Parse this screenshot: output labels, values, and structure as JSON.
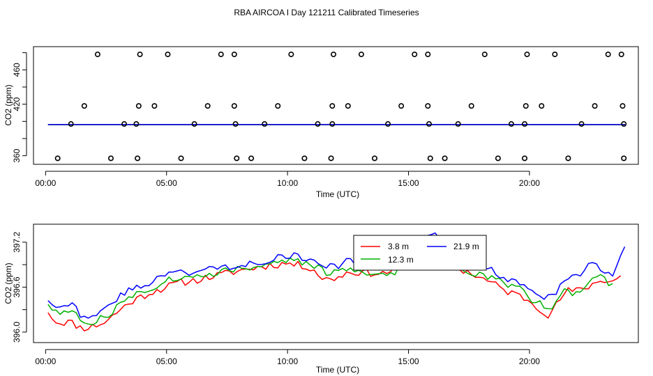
{
  "title": "RBA AIRCOA I  Day 121211  Calibrated Timeseries",
  "chart_data": [
    {
      "type": "scatter",
      "xlabel": "Time (UTC)",
      "ylabel": "CO2 (ppm)",
      "xlim": [
        -0.5,
        24.5
      ],
      "ylim": [
        350,
        487
      ],
      "xticks": [
        0,
        5,
        10,
        15,
        20
      ],
      "xtick_labels": [
        "00:00",
        "05:00",
        "10:00",
        "15:00",
        "20:00"
      ],
      "yticks": [
        360,
        420,
        460
      ],
      "ytick_labels": [
        "360",
        "420",
        "460"
      ],
      "yminor_ticks": [
        380,
        400,
        440,
        480
      ],
      "series_colors": [
        "#ff0000",
        "#00b000",
        "#0000ff"
      ],
      "points": [
        [
          0.5,
          357
        ],
        [
          1.05,
          397
        ],
        [
          1.6,
          418
        ],
        [
          2.15,
          478
        ],
        [
          2.7,
          357
        ],
        [
          3.25,
          397
        ],
        [
          3.8,
          357
        ],
        [
          3.75,
          397
        ],
        [
          3.85,
          418
        ],
        [
          3.9,
          478
        ],
        [
          4.5,
          418
        ],
        [
          5.05,
          478
        ],
        [
          5.6,
          357
        ],
        [
          6.15,
          397
        ],
        [
          6.7,
          418
        ],
        [
          7.25,
          478
        ],
        [
          7.8,
          478
        ],
        [
          7.8,
          418
        ],
        [
          7.85,
          397
        ],
        [
          7.9,
          357
        ],
        [
          8.5,
          357
        ],
        [
          9.05,
          397
        ],
        [
          9.6,
          418
        ],
        [
          10.15,
          478
        ],
        [
          10.7,
          357
        ],
        [
          11.25,
          397
        ],
        [
          11.8,
          357
        ],
        [
          11.85,
          397
        ],
        [
          11.85,
          418
        ],
        [
          11.9,
          478
        ],
        [
          12.5,
          418
        ],
        [
          13.05,
          478
        ],
        [
          13.6,
          357
        ],
        [
          14.15,
          397
        ],
        [
          14.7,
          418
        ],
        [
          15.25,
          478
        ],
        [
          15.8,
          478
        ],
        [
          15.8,
          418
        ],
        [
          15.85,
          397
        ],
        [
          15.9,
          357
        ],
        [
          16.5,
          357
        ],
        [
          17.05,
          397
        ],
        [
          17.6,
          418
        ],
        [
          18.15,
          478
        ],
        [
          18.7,
          357
        ],
        [
          19.25,
          397
        ],
        [
          19.8,
          357
        ],
        [
          19.8,
          397
        ],
        [
          19.85,
          418
        ],
        [
          19.9,
          478
        ],
        [
          20.5,
          418
        ],
        [
          21.05,
          478
        ],
        [
          21.6,
          357
        ],
        [
          22.15,
          397
        ],
        [
          22.7,
          418
        ],
        [
          23.25,
          478
        ],
        [
          23.8,
          478
        ],
        [
          23.85,
          418
        ],
        [
          23.9,
          397
        ],
        [
          23.9,
          357
        ]
      ],
      "series": [
        {
          "name": "3.8 m",
          "color": "#ff0000",
          "x": [
            0.1,
            23.95
          ],
          "y": [
            396.1,
            396.1
          ]
        },
        {
          "name": "12.3 m",
          "color": "#00b000",
          "x": [
            0.1,
            23.95
          ],
          "y": [
            396.2,
            396.2
          ]
        },
        {
          "name": "21.9 m",
          "color": "#0000ff",
          "x": [
            0.1,
            23.95
          ],
          "y": [
            396.3,
            396.3
          ]
        }
      ]
    },
    {
      "type": "line",
      "xlabel": "Time (UTC)",
      "ylabel": "CO2 (ppm)",
      "xlim": [
        -0.5,
        24.5
      ],
      "ylim": [
        395.86,
        397.44
      ],
      "xticks": [
        0,
        5,
        10,
        15,
        20
      ],
      "xtick_labels": [
        "00:00",
        "05:00",
        "10:00",
        "15:00",
        "20:00"
      ],
      "yticks": [
        396.0,
        396.6,
        397.2
      ],
      "ytick_labels": [
        "396.0",
        "396.6",
        "397.2"
      ],
      "yminor_ticks": [
        396.3,
        396.9
      ],
      "legend": {
        "placement": "top-center",
        "entries": [
          {
            "label": "3.8 m",
            "color": "#ff0000"
          },
          {
            "label": "21.9 m",
            "color": "#0000ff"
          },
          {
            "label": "12.3 m",
            "color": "#00b000"
          }
        ]
      },
      "series": [
        {
          "name": "3.8 m",
          "color": "#ff0000",
          "anchors": [
            [
              0.1,
              396.26
            ],
            [
              0.5,
              396.12
            ],
            [
              1.0,
              396.14
            ],
            [
              1.5,
              396.05
            ],
            [
              2.0,
              396.08
            ],
            [
              2.5,
              396.14
            ],
            [
              3.0,
              396.28
            ],
            [
              3.5,
              396.4
            ],
            [
              4.0,
              396.48
            ],
            [
              4.5,
              396.55
            ],
            [
              5.0,
              396.6
            ],
            [
              5.5,
              396.66
            ],
            [
              6.0,
              396.68
            ],
            [
              7.0,
              396.75
            ],
            [
              8.0,
              396.82
            ],
            [
              9.0,
              396.88
            ],
            [
              10.0,
              396.92
            ],
            [
              11.0,
              396.86
            ],
            [
              11.5,
              396.7
            ],
            [
              12.0,
              396.72
            ],
            [
              12.5,
              396.8
            ],
            [
              13.0,
              396.8
            ],
            [
              14.0,
              396.78
            ],
            [
              15.0,
              396.95
            ],
            [
              15.5,
              397.1
            ],
            [
              16.0,
              397.18
            ],
            [
              16.5,
              397.22
            ],
            [
              16.8,
              397.05
            ],
            [
              17.0,
              396.85
            ],
            [
              17.5,
              396.8
            ],
            [
              18.0,
              396.72
            ],
            [
              18.5,
              396.65
            ],
            [
              19.0,
              396.55
            ],
            [
              19.5,
              396.5
            ],
            [
              20.0,
              396.42
            ],
            [
              20.5,
              396.3
            ],
            [
              20.8,
              396.22
            ],
            [
              21.2,
              396.4
            ],
            [
              21.5,
              396.55
            ],
            [
              22.0,
              396.55
            ],
            [
              22.5,
              396.62
            ],
            [
              23.0,
              396.7
            ],
            [
              23.5,
              396.68
            ],
            [
              23.9,
              396.8
            ]
          ],
          "amp": 0.05,
          "seed": 11,
          "stops": [
            23.9
          ]
        },
        {
          "name": "12.3 m",
          "color": "#00b000",
          "anchors": [
            [
              0.1,
              396.37
            ],
            [
              0.5,
              396.25
            ],
            [
              1.0,
              396.28
            ],
            [
              1.5,
              396.15
            ],
            [
              2.0,
              396.14
            ],
            [
              2.5,
              396.2
            ],
            [
              3.0,
              396.35
            ],
            [
              3.5,
              396.48
            ],
            [
              4.0,
              396.55
            ],
            [
              4.5,
              396.6
            ],
            [
              5.0,
              396.7
            ],
            [
              5.5,
              396.72
            ],
            [
              6.0,
              396.72
            ],
            [
              7.0,
              396.8
            ],
            [
              8.0,
              396.85
            ],
            [
              9.0,
              396.9
            ],
            [
              10.0,
              396.95
            ],
            [
              11.0,
              396.92
            ],
            [
              11.5,
              396.8
            ],
            [
              12.0,
              396.78
            ],
            [
              12.5,
              396.85
            ],
            [
              13.0,
              396.82
            ],
            [
              14.0,
              396.75
            ],
            [
              14.5,
              396.82
            ],
            [
              15.0,
              396.98
            ],
            [
              15.5,
              397.05
            ],
            [
              16.0,
              397.1
            ],
            [
              16.5,
              397.18
            ],
            [
              16.8,
              397.02
            ],
            [
              17.2,
              396.8
            ],
            [
              18.0,
              396.78
            ],
            [
              18.5,
              396.72
            ],
            [
              19.0,
              396.65
            ],
            [
              19.5,
              396.6
            ],
            [
              20.0,
              396.45
            ],
            [
              20.5,
              396.4
            ],
            [
              20.8,
              396.3
            ],
            [
              21.2,
              396.45
            ],
            [
              21.5,
              396.55
            ],
            [
              22.0,
              396.5
            ],
            [
              22.5,
              396.68
            ],
            [
              23.0,
              396.75
            ],
            [
              23.4,
              396.62
            ],
            [
              23.6,
              396.75
            ]
          ],
          "amp": 0.05,
          "seed": 27,
          "stops": [
            23.6
          ]
        },
        {
          "name": "21.9 m",
          "color": "#0000ff",
          "anchors": [
            [
              0.1,
              396.42
            ],
            [
              0.5,
              396.35
            ],
            [
              1.0,
              396.4
            ],
            [
              1.5,
              396.22
            ],
            [
              2.0,
              396.24
            ],
            [
              2.5,
              396.3
            ],
            [
              3.0,
              396.45
            ],
            [
              3.5,
              396.58
            ],
            [
              4.0,
              396.62
            ],
            [
              4.5,
              396.7
            ],
            [
              5.0,
              396.78
            ],
            [
              5.5,
              396.8
            ],
            [
              6.0,
              396.8
            ],
            [
              7.0,
              396.85
            ],
            [
              8.0,
              396.9
            ],
            [
              9.0,
              396.95
            ],
            [
              10.0,
              397.02
            ],
            [
              11.0,
              396.98
            ],
            [
              11.5,
              396.85
            ],
            [
              12.0,
              396.88
            ],
            [
              12.5,
              396.95
            ],
            [
              13.0,
              396.92
            ],
            [
              14.0,
              396.9
            ],
            [
              15.0,
              397.05
            ],
            [
              15.5,
              397.2
            ],
            [
              16.0,
              397.3
            ],
            [
              16.5,
              397.28
            ],
            [
              16.8,
              397.15
            ],
            [
              17.0,
              396.95
            ],
            [
              17.5,
              396.92
            ],
            [
              18.0,
              396.85
            ],
            [
              18.5,
              396.82
            ],
            [
              19.0,
              396.72
            ],
            [
              19.5,
              396.7
            ],
            [
              20.0,
              396.55
            ],
            [
              20.5,
              396.5
            ],
            [
              20.8,
              396.45
            ],
            [
              21.2,
              396.58
            ],
            [
              21.5,
              396.7
            ],
            [
              22.0,
              396.75
            ],
            [
              22.5,
              396.9
            ],
            [
              23.0,
              396.85
            ],
            [
              23.4,
              396.72
            ],
            [
              23.6,
              396.85
            ],
            [
              23.95,
              397.15
            ]
          ],
          "amp": 0.05,
          "seed": 43,
          "stops": [
            23.95
          ]
        }
      ]
    }
  ]
}
